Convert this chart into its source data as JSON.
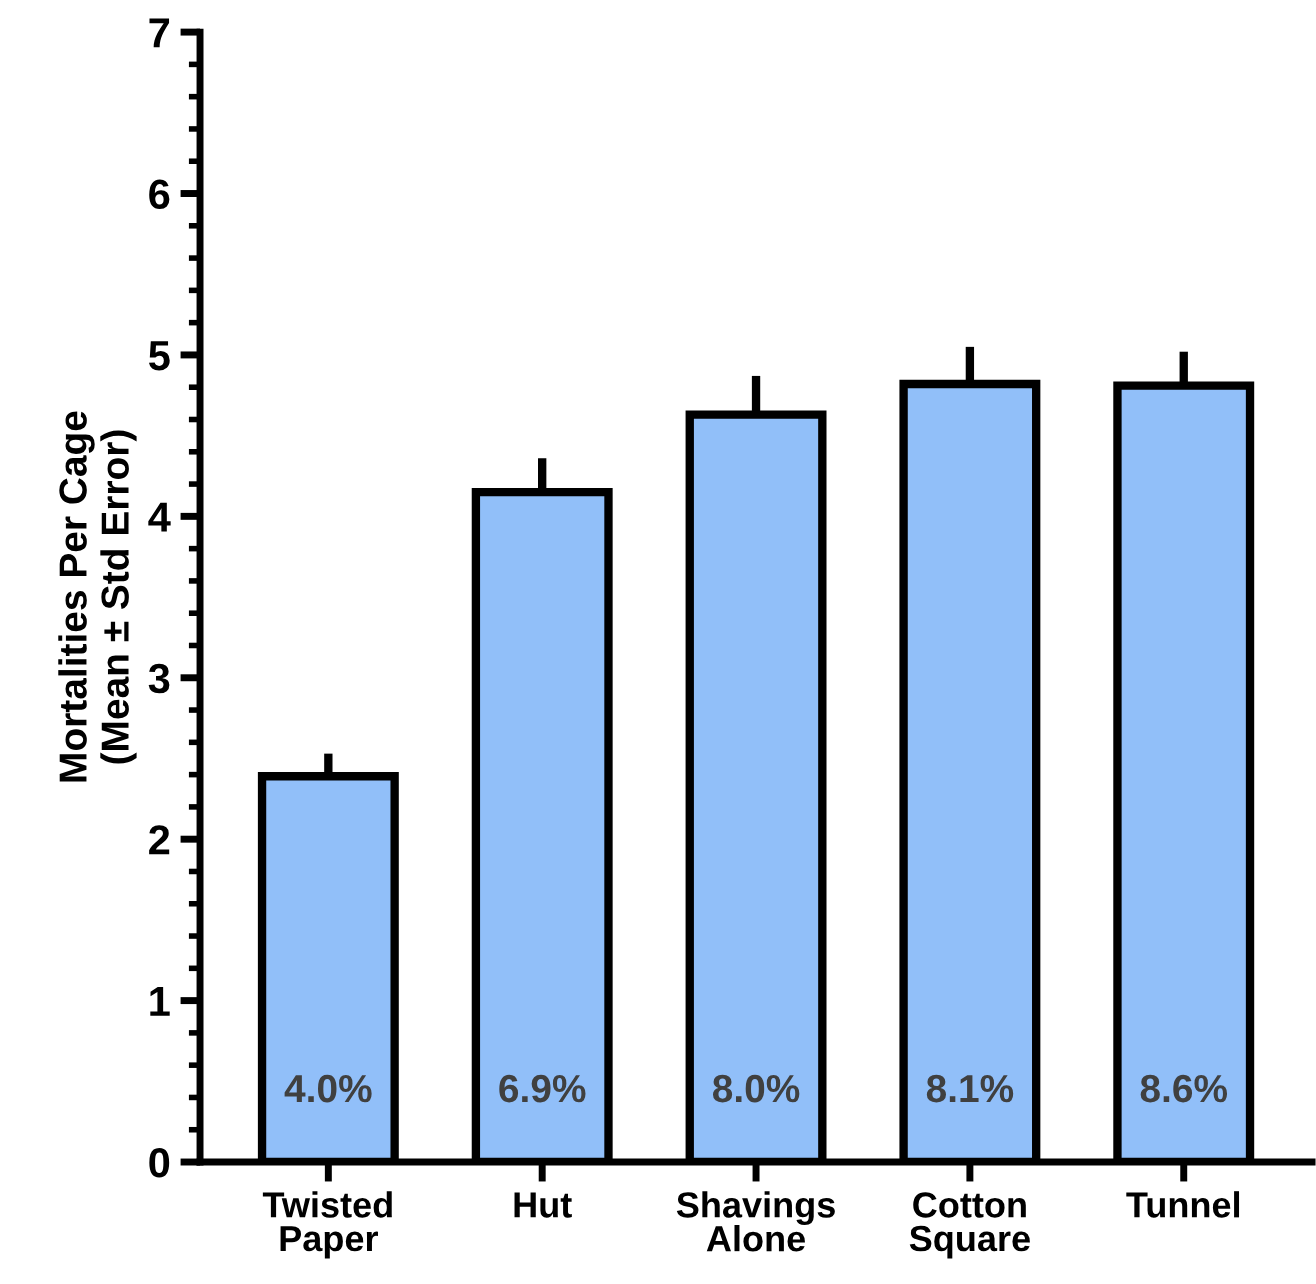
{
  "chart_data": {
    "type": "bar",
    "ylabel": "Mortalities Per Cage\n(Mean ± Std Error)",
    "categories": [
      "Twisted\nPaper",
      "Hut",
      "Shavings\nAlone",
      "Cotton\nSquare",
      "Tunnel"
    ],
    "values": [
      2.39,
      4.15,
      4.63,
      4.82,
      4.81
    ],
    "errors": [
      [
        2.39,
        2.53
      ],
      [
        4.15,
        4.36
      ],
      [
        4.63,
        4.87
      ],
      [
        4.82,
        5.05
      ],
      [
        4.81,
        5.02
      ]
    ],
    "color": "#91bff9",
    "ylim": [
      0,
      7
    ],
    "yticks": [
      0,
      1,
      2,
      3,
      4,
      5,
      6,
      7
    ],
    "grid": false,
    "legend": false,
    "annotations": [
      "4.0%",
      "6.9%",
      "8.0%",
      "8.1%",
      "8.6%"
    ]
  }
}
